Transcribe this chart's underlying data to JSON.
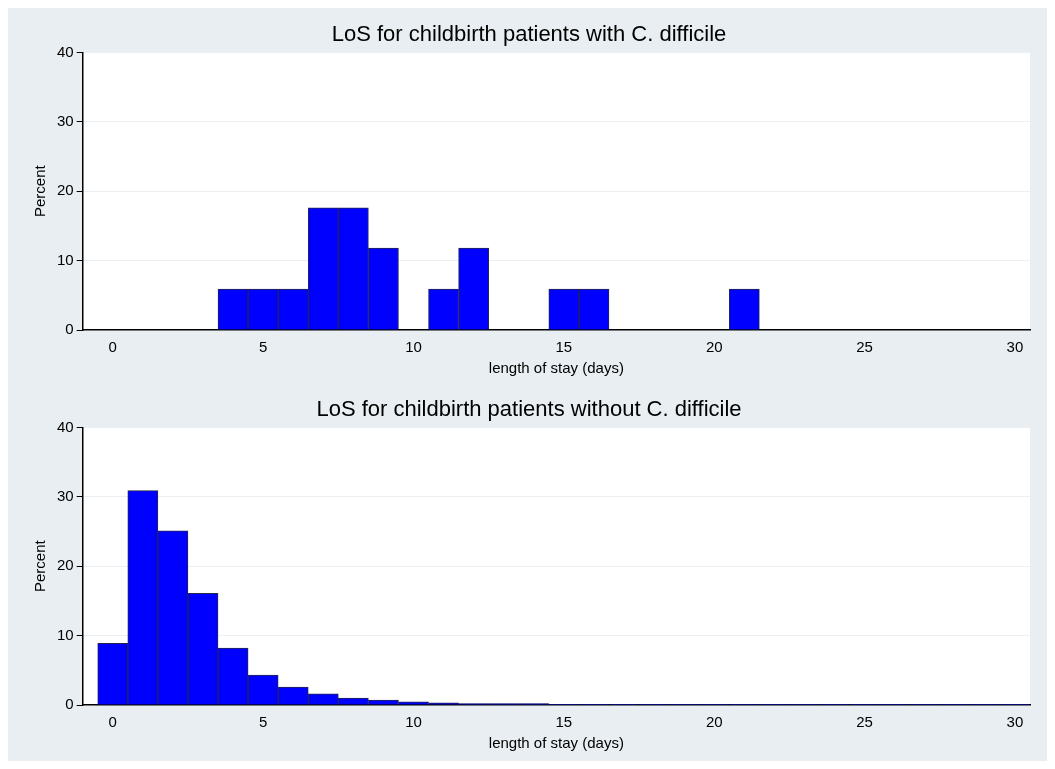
{
  "chart_data": [
    {
      "type": "histogram",
      "title": "LoS for childbirth patients with C. difficile",
      "xlabel": "length of stay (days)",
      "ylabel": "Percent",
      "color": "#0000ff",
      "bins": [
        3.5,
        4.5,
        5.5,
        6.5,
        7.5,
        8.5,
        9.5,
        10.5,
        11.5,
        12.5,
        13.5,
        14.5,
        15.5,
        16.5,
        17.5,
        18.5,
        19.5,
        20.5,
        21.5
      ],
      "values": [
        5.9,
        5.9,
        5.9,
        17.6,
        17.6,
        11.8,
        0,
        5.9,
        11.8,
        0,
        0,
        5.9,
        5.9,
        0,
        0,
        0,
        0,
        5.9
      ],
      "xlim": [
        -1,
        30.5
      ],
      "xticks": [
        0,
        5,
        10,
        15,
        20,
        25,
        30
      ],
      "ylim": [
        0,
        40
      ],
      "yticks": [
        0,
        10,
        20,
        30,
        40
      ],
      "grid": "y",
      "legend": false
    },
    {
      "type": "histogram",
      "title": "LoS for childbirth patients without C. difficile",
      "xlabel": "length of stay (days)",
      "ylabel": "Percent",
      "color": "#0000ff",
      "bins": [
        -0.5,
        0.5,
        1.5,
        2.5,
        3.5,
        4.5,
        5.5,
        6.5,
        7.5,
        8.5,
        9.5,
        10.5,
        11.5,
        12.5,
        13.5,
        14.5,
        15.5,
        16.5,
        17.5,
        18.5,
        19.5,
        20.5,
        21.5,
        22.5,
        23.5,
        24.5,
        25.5,
        26.5,
        27.5,
        28.5,
        29.5,
        30.5
      ],
      "values": [
        8.9,
        30.9,
        25.1,
        16.1,
        8.2,
        4.3,
        2.6,
        1.6,
        1,
        0.7,
        0.45,
        0.3,
        0.2,
        0.2,
        0.2,
        0.1,
        0.1,
        0.1,
        0.1,
        0.1,
        0.1,
        0.1,
        0.1,
        0.1,
        0.1,
        0.1,
        0.1,
        0.1,
        0.1,
        0.1,
        0.1
      ],
      "xlim": [
        -1,
        30.5
      ],
      "xticks": [
        0,
        5,
        10,
        15,
        20,
        25,
        30
      ],
      "ylim": [
        0,
        40
      ],
      "yticks": [
        0,
        10,
        20,
        30,
        40
      ],
      "grid": "y",
      "legend": false
    }
  ]
}
